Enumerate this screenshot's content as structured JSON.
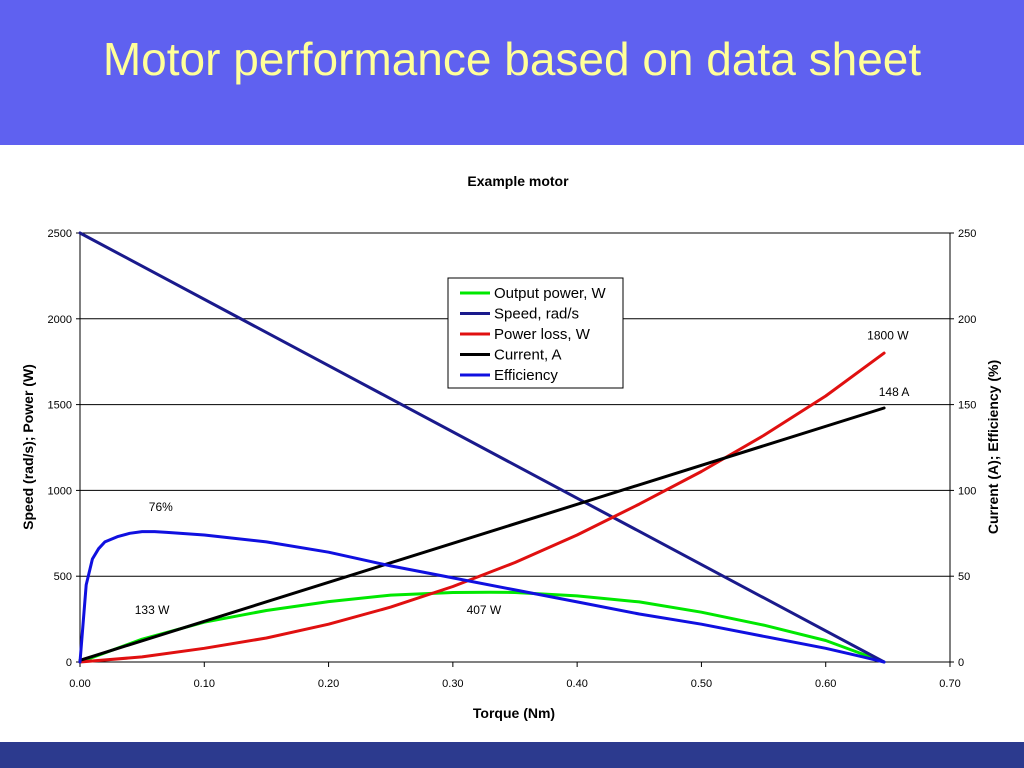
{
  "slide": {
    "title": "Motor performance based on data sheet"
  },
  "chart_data": {
    "type": "line",
    "title": "Example motor",
    "xlabel": "Torque  (Nm)",
    "ylabel_left": "Speed (rad/s);  Power (W)",
    "ylabel_right": "Current (A); Efficiency (%)",
    "xlim": [
      0,
      0.7
    ],
    "ylim_left": [
      0,
      2500
    ],
    "ylim_right": [
      0,
      250
    ],
    "x_ticks": [
      "0.00",
      "0.10",
      "0.20",
      "0.30",
      "0.40",
      "0.50",
      "0.60",
      "0.70"
    ],
    "y_left_ticks": [
      "0",
      "500",
      "1000",
      "1500",
      "2000",
      "2500"
    ],
    "y_right_ticks": [
      "0",
      "50",
      "100",
      "150",
      "200",
      "250"
    ],
    "grid": true,
    "legend_position": "top-center",
    "series": [
      {
        "name": "Output power, W",
        "color": "#00e800",
        "axis": "left",
        "x": [
          0,
          0.05,
          0.1,
          0.15,
          0.2,
          0.25,
          0.3,
          0.33,
          0.35,
          0.4,
          0.45,
          0.5,
          0.55,
          0.6,
          0.647
        ],
        "y": [
          0,
          133,
          232,
          300,
          352,
          390,
          405,
          407,
          405,
          385,
          350,
          290,
          215,
          125,
          0
        ]
      },
      {
        "name": "Speed, rad/s",
        "color": "#1a1a8c",
        "axis": "left",
        "x": [
          0,
          0.647
        ],
        "y": [
          2500,
          0
        ]
      },
      {
        "name": "Power loss, W",
        "color": "#e01010",
        "axis": "left",
        "x": [
          0,
          0.05,
          0.1,
          0.15,
          0.2,
          0.25,
          0.3,
          0.35,
          0.4,
          0.45,
          0.5,
          0.55,
          0.6,
          0.647
        ],
        "y": [
          0,
          30,
          80,
          140,
          220,
          320,
          440,
          580,
          740,
          920,
          1110,
          1320,
          1550,
          1800
        ]
      },
      {
        "name": "Current, A",
        "color": "#000000",
        "axis": "right",
        "x": [
          0,
          0.647
        ],
        "y": [
          1,
          148
        ]
      },
      {
        "name": "Efficiency",
        "color": "#1010e0",
        "axis": "right",
        "x": [
          0,
          0.005,
          0.01,
          0.015,
          0.02,
          0.03,
          0.04,
          0.05,
          0.06,
          0.07,
          0.1,
          0.15,
          0.2,
          0.25,
          0.3,
          0.35,
          0.4,
          0.45,
          0.5,
          0.55,
          0.6,
          0.63,
          0.647
        ],
        "y": [
          0,
          45,
          60,
          66,
          70,
          73,
          75,
          76,
          76,
          75.5,
          74,
          70,
          64,
          56,
          49,
          42,
          35,
          28,
          22,
          15,
          8,
          3,
          0
        ]
      }
    ],
    "annotations": [
      {
        "text": "1800 W",
        "x": 0.65,
        "y": 1880,
        "axis": "left",
        "anchor": "middle"
      },
      {
        "text": "148 A",
        "x": 0.655,
        "y": 1550,
        "axis": "left",
        "anchor": "middle"
      },
      {
        "text": "76%",
        "x": 0.065,
        "y": 880,
        "axis": "left",
        "anchor": "middle"
      },
      {
        "text": "133 W",
        "x": 0.058,
        "y": 280,
        "axis": "left",
        "anchor": "middle"
      },
      {
        "text": "407 W",
        "x": 0.325,
        "y": 280,
        "axis": "left",
        "anchor": "middle"
      }
    ]
  }
}
